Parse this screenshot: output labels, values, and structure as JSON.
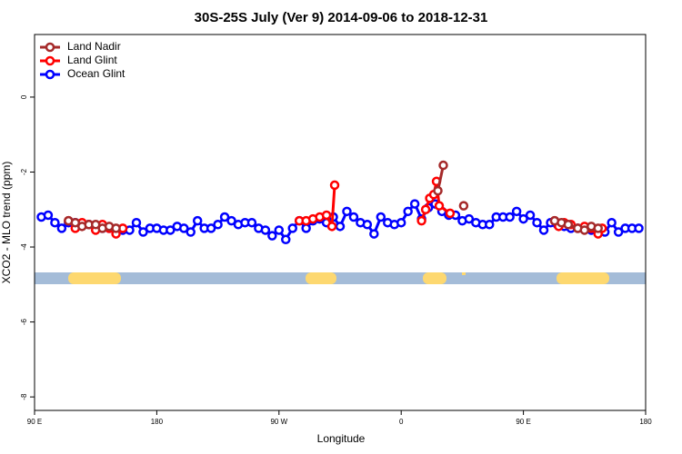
{
  "chart_data": {
    "type": "line",
    "title": "30S-25S July (Ver 9)   2014-09-06 to 2018-12-31",
    "x_label": "Longitude",
    "y_label": "XCO2 - MLO trend (ppm)",
    "xlim": [
      90,
      540
    ],
    "ylim": [
      -8.36,
      1.67
    ],
    "xticks": [
      {
        "value": 90,
        "label": "90 E"
      },
      180,
      {
        "value": 270,
        "label": "90 W"
      },
      {
        "value": 360,
        "label": "0"
      },
      {
        "value": 450,
        "label": "90 E"
      },
      {
        "value": 540,
        "label": "180"
      }
    ],
    "yticks": [
      0,
      -2,
      -4,
      -6,
      -8
    ],
    "legend": "top-left",
    "series": [
      {
        "name": "Land Nadir",
        "color": "#a52a2a",
        "x": [
          115,
          120,
          125,
          130,
          135,
          140,
          145,
          150,
          null,
          387,
          391,
          null,
          406,
          null,
          473,
          478,
          483,
          490,
          495,
          500,
          505
        ],
        "values": [
          -3.3,
          -3.35,
          -3.45,
          -3.4,
          -3.4,
          -3.5,
          -3.45,
          -3.5,
          null,
          -2.5,
          -1.82,
          null,
          -2.9,
          null,
          -3.3,
          -3.35,
          -3.4,
          -3.5,
          -3.55,
          -3.45,
          -3.5
        ]
      },
      {
        "name": "Land Glint",
        "color": "#ff0000",
        "x": [
          115,
          120,
          125,
          130,
          135,
          140,
          145,
          150,
          155,
          null,
          285,
          290,
          295,
          300,
          305,
          309,
          311,
          null,
          375,
          378,
          381,
          384,
          386,
          388,
          396,
          null,
          473,
          476,
          480,
          485,
          490,
          495,
          500,
          505,
          508
        ],
        "values": [
          -3.3,
          -3.5,
          -3.35,
          -3.4,
          -3.55,
          -3.4,
          -3.5,
          -3.65,
          -3.5,
          null,
          -3.3,
          -3.3,
          -3.25,
          -3.2,
          -3.15,
          -3.45,
          -2.35,
          null,
          -3.3,
          -3.0,
          -2.7,
          -2.6,
          -2.25,
          -2.9,
          -3.1,
          null,
          -3.3,
          -3.45,
          -3.35,
          -3.4,
          -3.5,
          -3.45,
          -3.5,
          -3.65,
          -3.5
        ]
      },
      {
        "name": "Ocean Glint",
        "color": "#0000ff",
        "x": [
          95,
          100,
          105,
          110,
          115,
          120,
          125,
          130,
          135,
          140,
          145,
          150,
          155,
          160,
          165,
          170,
          175,
          180,
          185,
          190,
          195,
          200,
          205,
          210,
          215,
          220,
          225,
          230,
          235,
          240,
          245,
          250,
          255,
          260,
          265,
          270,
          275,
          280,
          285,
          290,
          295,
          300,
          305,
          310,
          315,
          320,
          325,
          330,
          335,
          340,
          345,
          350,
          355,
          360,
          365,
          370,
          375,
          380,
          385,
          390,
          395,
          400,
          405,
          410,
          415,
          420,
          425,
          430,
          435,
          440,
          445,
          450,
          455,
          460,
          465,
          470,
          475,
          480,
          485,
          490,
          495,
          500,
          505,
          510,
          515,
          520,
          525,
          530,
          535
        ],
        "values": [
          -3.2,
          -3.15,
          -3.35,
          -3.5,
          -3.35,
          -3.35,
          -3.4,
          -3.4,
          -3.45,
          -3.5,
          -3.5,
          -3.55,
          -3.55,
          -3.55,
          -3.35,
          -3.6,
          -3.5,
          -3.5,
          -3.55,
          -3.55,
          -3.45,
          -3.5,
          -3.6,
          -3.3,
          -3.5,
          -3.5,
          -3.4,
          -3.2,
          -3.3,
          -3.4,
          -3.35,
          -3.35,
          -3.5,
          -3.55,
          -3.7,
          -3.55,
          -3.8,
          -3.5,
          -3.3,
          -3.5,
          -3.3,
          -3.25,
          -3.35,
          -3.2,
          -3.45,
          -3.05,
          -3.2,
          -3.35,
          -3.4,
          -3.65,
          -3.2,
          -3.35,
          -3.4,
          -3.35,
          -3.05,
          -2.85,
          -3.25,
          -2.95,
          -2.85,
          -3.05,
          -3.15,
          -3.15,
          -3.3,
          -3.25,
          -3.35,
          -3.4,
          -3.4,
          -3.2,
          -3.2,
          -3.2,
          -3.05,
          -3.25,
          -3.15,
          -3.35,
          -3.55,
          -3.35,
          -3.4,
          -3.45,
          -3.5,
          -3.5,
          -3.5,
          -3.55,
          -3.55,
          -3.6,
          -3.35,
          -3.6,
          -3.5,
          -3.5,
          -3.5
        ]
      }
    ]
  }
}
